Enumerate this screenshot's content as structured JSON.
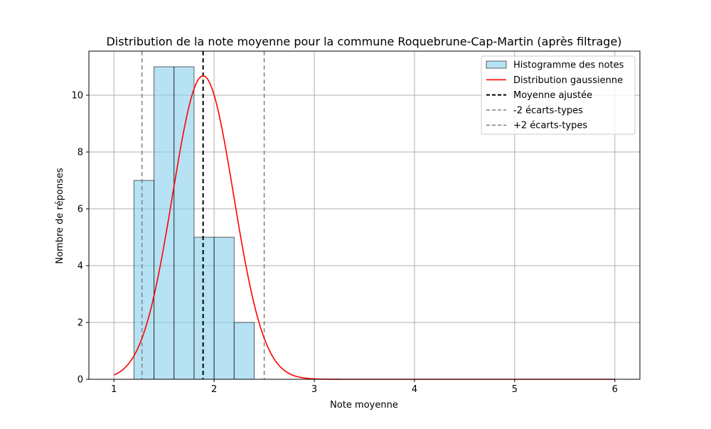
{
  "chart_data": {
    "type": "bar",
    "title": "Distribution de la note moyenne pour la commune Roquebrune-Cap-Martin (après filtrage)",
    "xlabel": "Note moyenne",
    "ylabel": "Nombre de réponses",
    "xlim": [
      0.75,
      6.25
    ],
    "ylim": [
      0,
      11.55
    ],
    "xticks": [
      1,
      2,
      3,
      4,
      5,
      6
    ],
    "yticks": [
      0,
      2,
      4,
      6,
      8,
      10
    ],
    "grid": true,
    "legend_position": "top-right",
    "histogram": {
      "name": "Histogramme des notes",
      "color": "#87CEEB",
      "edge_color": "#000000",
      "bins": [
        {
          "start": 1.2,
          "end": 1.4,
          "count": 7
        },
        {
          "start": 1.4,
          "end": 1.6,
          "count": 11
        },
        {
          "start": 1.6,
          "end": 1.8,
          "count": 11
        },
        {
          "start": 1.8,
          "end": 2.0,
          "count": 5
        },
        {
          "start": 2.0,
          "end": 2.2,
          "count": 5
        },
        {
          "start": 2.2,
          "end": 2.4,
          "count": 2
        }
      ]
    },
    "gaussian": {
      "name": "Distribution gaussienne",
      "color": "#ff0000",
      "mean": 1.89,
      "std": 0.305,
      "peak": 10.68,
      "x_range": [
        1,
        6
      ]
    },
    "lines": [
      {
        "name": "Moyenne ajustée",
        "x": 1.89,
        "color": "#000000",
        "style": "dashed"
      },
      {
        "name": "-2 écarts-types",
        "x": 1.28,
        "color": "#808080",
        "style": "dashed"
      },
      {
        "name": "+2 écarts-types",
        "x": 2.5,
        "color": "#808080",
        "style": "dashed"
      }
    ]
  }
}
